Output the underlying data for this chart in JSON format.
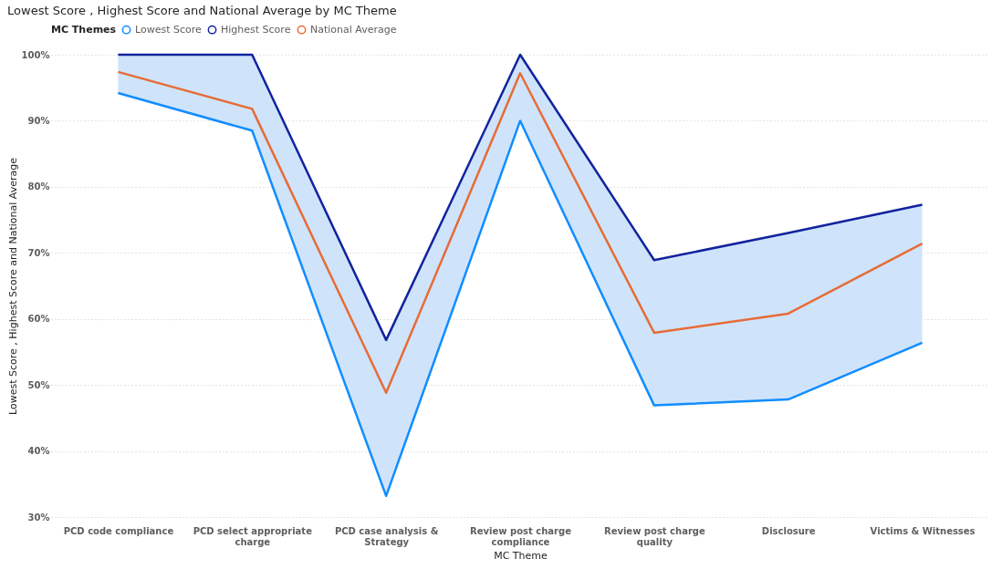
{
  "chart_data": {
    "type": "line",
    "title": "Lowest Score , Highest Score and National Average by MC Theme",
    "xlabel": "MC Theme",
    "ylabel": "Lowest Score , Highest Score and National Average",
    "legend_title": "MC Themes",
    "categories": [
      "PCD code compliance",
      "PCD select appropriate charge",
      "PCD case analysis & Strategy",
      "Review post charge compliance",
      "Review post charge quality",
      "Disclosure",
      "Victims & Witnesses"
    ],
    "series": [
      {
        "name": "Lowest Score",
        "color": "#118dff",
        "values": [
          94.2,
          88.5,
          33.2,
          90.0,
          46.9,
          47.8,
          56.4
        ]
      },
      {
        "name": "Highest Score",
        "color": "#12239e",
        "values": [
          100,
          100,
          56.8,
          100,
          68.9,
          73.0,
          77.3
        ]
      },
      {
        "name": "National Average",
        "color": "#e66c37",
        "values": [
          97.4,
          91.8,
          48.8,
          97.2,
          57.9,
          60.8,
          71.4
        ],
        "lower": [
          94.2,
          88.5,
          33.2,
          90.0,
          46.9,
          47.8,
          56.4
        ],
        "upper": [
          100,
          100,
          56.8,
          100,
          68.9,
          73.0,
          77.3
        ]
      }
    ],
    "ylim": [
      30,
      100
    ],
    "yticks": [
      {
        "value": 30,
        "label": "30%"
      },
      {
        "value": 40,
        "label": "40%"
      },
      {
        "value": 50,
        "label": "50%"
      },
      {
        "value": 60,
        "label": "60%"
      },
      {
        "value": 70,
        "label": "70%"
      },
      {
        "value": 80,
        "label": "80%"
      },
      {
        "value": 90,
        "label": "90%"
      },
      {
        "value": 100,
        "label": "100%"
      }
    ],
    "grid": "y",
    "legend": "top left",
    "marker": "none",
    "line_style": "solid"
  }
}
